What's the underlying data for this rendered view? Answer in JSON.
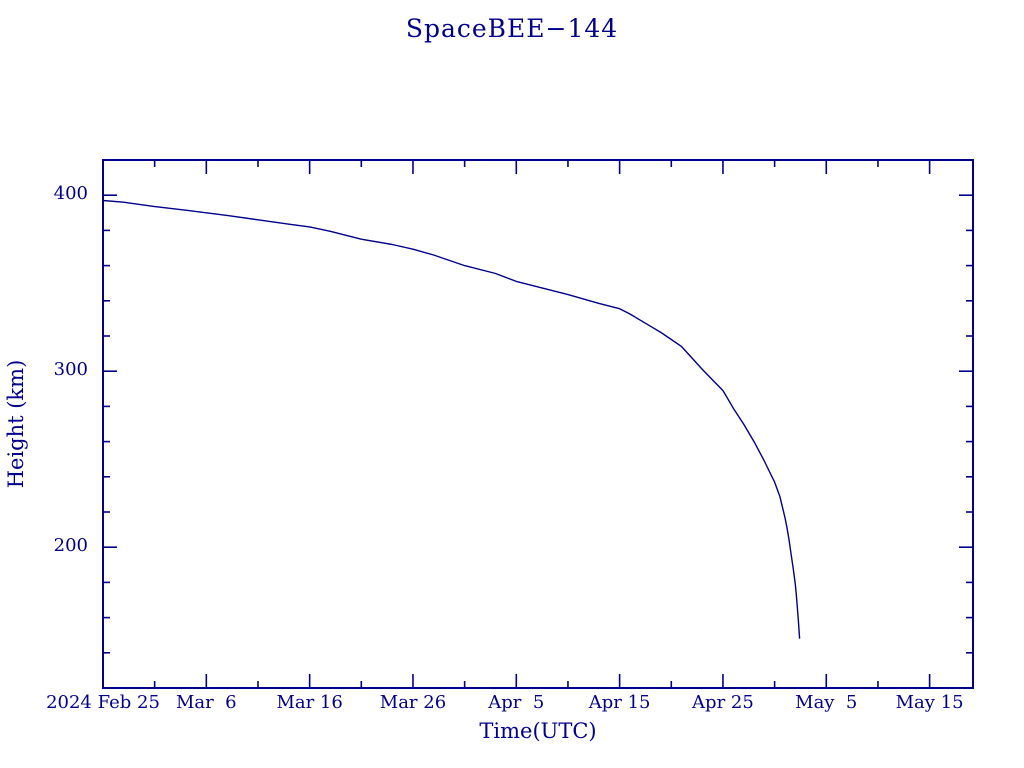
{
  "title": "SpaceBEE−144",
  "colors": {
    "ink": "#00008B",
    "background": "#ffffff"
  },
  "chart_data": {
    "type": "line",
    "title": "SpaceBEE−144",
    "xlabel": "Time(UTC)",
    "ylabel": "Height (km)",
    "x_epoch": "2024 Feb 25",
    "x_unit": "days since 2024 Feb 25",
    "xlim": [
      0,
      84.2
    ],
    "ylim": [
      120,
      420
    ],
    "grid": false,
    "legend_position": "none",
    "x_major_ticks": [
      {
        "day": 0,
        "label": "2024 Feb 25"
      },
      {
        "day": 10,
        "label": "Mar  6"
      },
      {
        "day": 20,
        "label": "Mar 16"
      },
      {
        "day": 30,
        "label": "Mar 26"
      },
      {
        "day": 40,
        "label": "Apr  5"
      },
      {
        "day": 50,
        "label": "Apr 15"
      },
      {
        "day": 60,
        "label": "Apr 25"
      },
      {
        "day": 70,
        "label": "May  5"
      },
      {
        "day": 80,
        "label": "May 15"
      }
    ],
    "x_minor_step_days": 5,
    "y_major_ticks": [
      {
        "km": 200,
        "label": "200"
      },
      {
        "km": 300,
        "label": "300"
      },
      {
        "km": 400,
        "label": "400"
      }
    ],
    "y_minor_step_km": 20,
    "series": [
      {
        "name": "SpaceBEE-144 orbital height",
        "points_day_km": [
          [
            0,
            397
          ],
          [
            2,
            396
          ],
          [
            5,
            393.5
          ],
          [
            8,
            391.5
          ],
          [
            10,
            390
          ],
          [
            12,
            388.5
          ],
          [
            15,
            386
          ],
          [
            18,
            383.5
          ],
          [
            20,
            382
          ],
          [
            22,
            379.5
          ],
          [
            25,
            375
          ],
          [
            28,
            372
          ],
          [
            30,
            369.3
          ],
          [
            32,
            366
          ],
          [
            35,
            360
          ],
          [
            38,
            355.5
          ],
          [
            40,
            351
          ],
          [
            42,
            348
          ],
          [
            45,
            343.5
          ],
          [
            48,
            338.5
          ],
          [
            50,
            335.5
          ],
          [
            51,
            332.5
          ],
          [
            52,
            329
          ],
          [
            53,
            325.5
          ],
          [
            54,
            322
          ],
          [
            55,
            318
          ],
          [
            56,
            314
          ],
          [
            57,
            307.5
          ],
          [
            58,
            301
          ],
          [
            59,
            295
          ],
          [
            60,
            289
          ],
          [
            61,
            279
          ],
          [
            62,
            270
          ],
          [
            63,
            260
          ],
          [
            64,
            249
          ],
          [
            64.5,
            243
          ],
          [
            65,
            237
          ],
          [
            65.5,
            229
          ],
          [
            66,
            217
          ],
          [
            66.2,
            211
          ],
          [
            66.4,
            204
          ],
          [
            66.6,
            196
          ],
          [
            66.8,
            188
          ],
          [
            67.0,
            179
          ],
          [
            67.1,
            173
          ],
          [
            67.2,
            166
          ],
          [
            67.3,
            158
          ],
          [
            67.42,
            148
          ]
        ]
      }
    ]
  }
}
